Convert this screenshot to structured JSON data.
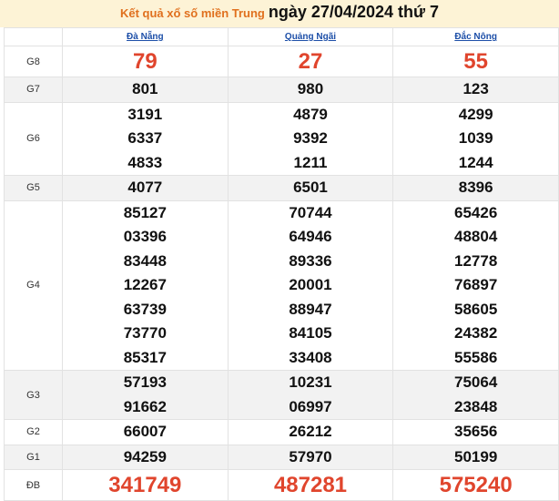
{
  "header": {
    "prefix": "Kết quả xổ số miền Trung",
    "date": "ngày 27/04/2024 thứ 7"
  },
  "table": {
    "columns": [
      "Đà Nẵng",
      "Quảng Ngãi",
      "Đắc Nông"
    ],
    "rows": [
      {
        "label": "G8",
        "values": [
          [
            "79"
          ],
          [
            "27"
          ],
          [
            "55"
          ]
        ]
      },
      {
        "label": "G7",
        "values": [
          [
            "801"
          ],
          [
            "980"
          ],
          [
            "123"
          ]
        ]
      },
      {
        "label": "G6",
        "values": [
          [
            "3191",
            "6337",
            "4833"
          ],
          [
            "4879",
            "9392",
            "1211"
          ],
          [
            "4299",
            "1039",
            "1244"
          ]
        ]
      },
      {
        "label": "G5",
        "values": [
          [
            "4077"
          ],
          [
            "6501"
          ],
          [
            "8396"
          ]
        ]
      },
      {
        "label": "G4",
        "values": [
          [
            "85127",
            "03396",
            "83448",
            "12267",
            "63739",
            "73770",
            "85317"
          ],
          [
            "70744",
            "64946",
            "89336",
            "20001",
            "88947",
            "84105",
            "33408"
          ],
          [
            "65426",
            "48804",
            "12778",
            "76897",
            "58605",
            "24382",
            "55586"
          ]
        ]
      },
      {
        "label": "G3",
        "values": [
          [
            "57193",
            "91662"
          ],
          [
            "10231",
            "06997"
          ],
          [
            "75064",
            "23848"
          ]
        ]
      },
      {
        "label": "G2",
        "values": [
          [
            "66007"
          ],
          [
            "26212"
          ],
          [
            "35656"
          ]
        ]
      },
      {
        "label": "G1",
        "values": [
          [
            "94259"
          ],
          [
            "57970"
          ],
          [
            "50199"
          ]
        ]
      },
      {
        "label": "ĐB",
        "values": [
          [
            "341749"
          ],
          [
            "487281"
          ],
          [
            "575240"
          ]
        ]
      }
    ]
  }
}
